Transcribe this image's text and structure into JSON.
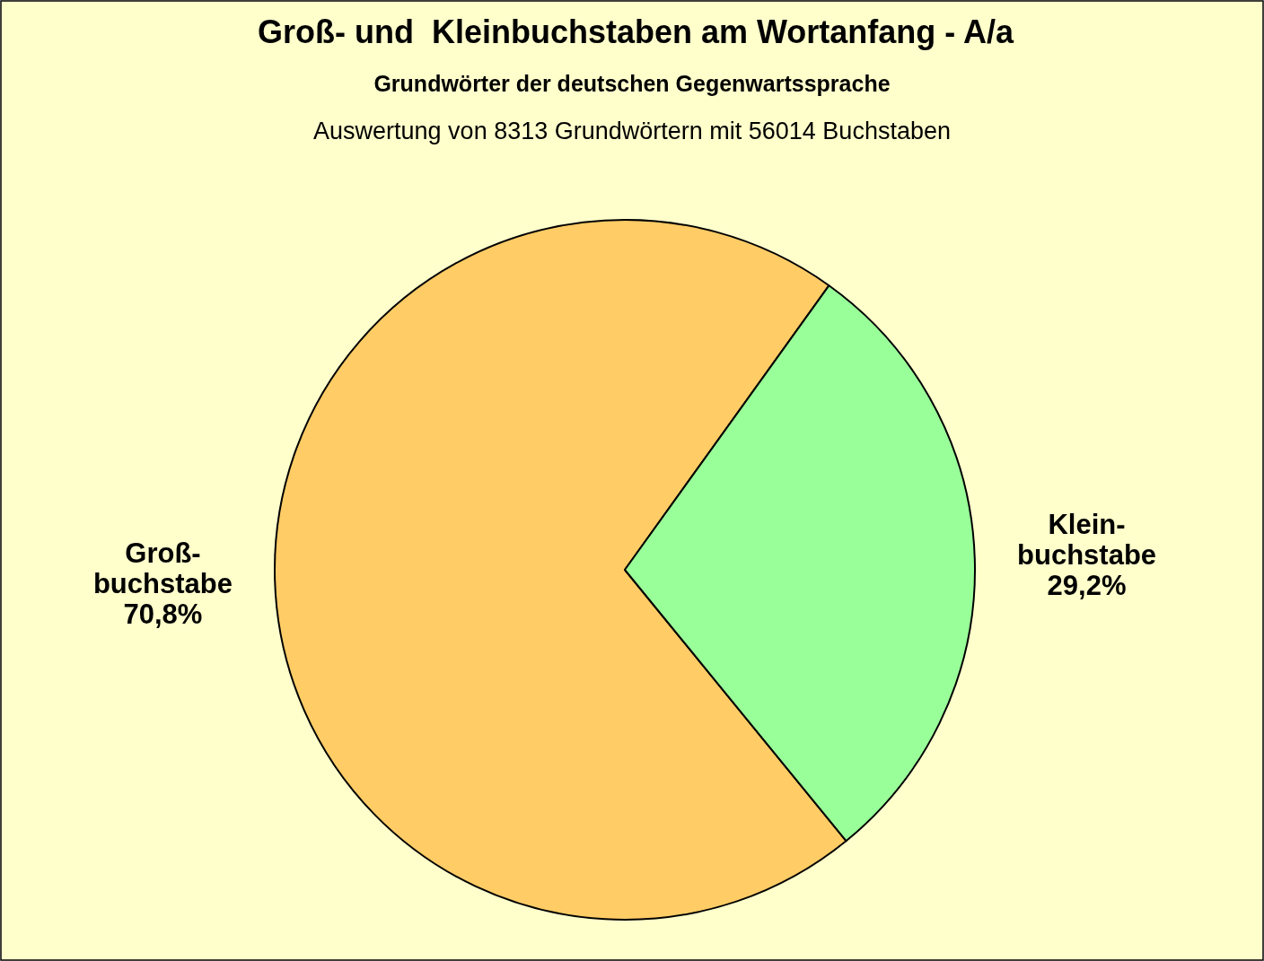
{
  "chart_data": {
    "type": "pie",
    "title": "Groß- und  Kleinbuchstaben am Wortanfang - A/a",
    "subtitle": "Grundwörter der deutschen Gegenwartssprache",
    "annotations": [
      "Auswertung von 8313 Grundwörtern mit 56014 Buchstaben"
    ],
    "categories": [
      "Groß-\nbuchstabe",
      "Klein-\nbuchstabe"
    ],
    "values": [
      70.8,
      29.2
    ],
    "colors": [
      "#ffcc66",
      "#99ff99"
    ],
    "value_labels": [
      "70,8%",
      "29,2%"
    ]
  }
}
